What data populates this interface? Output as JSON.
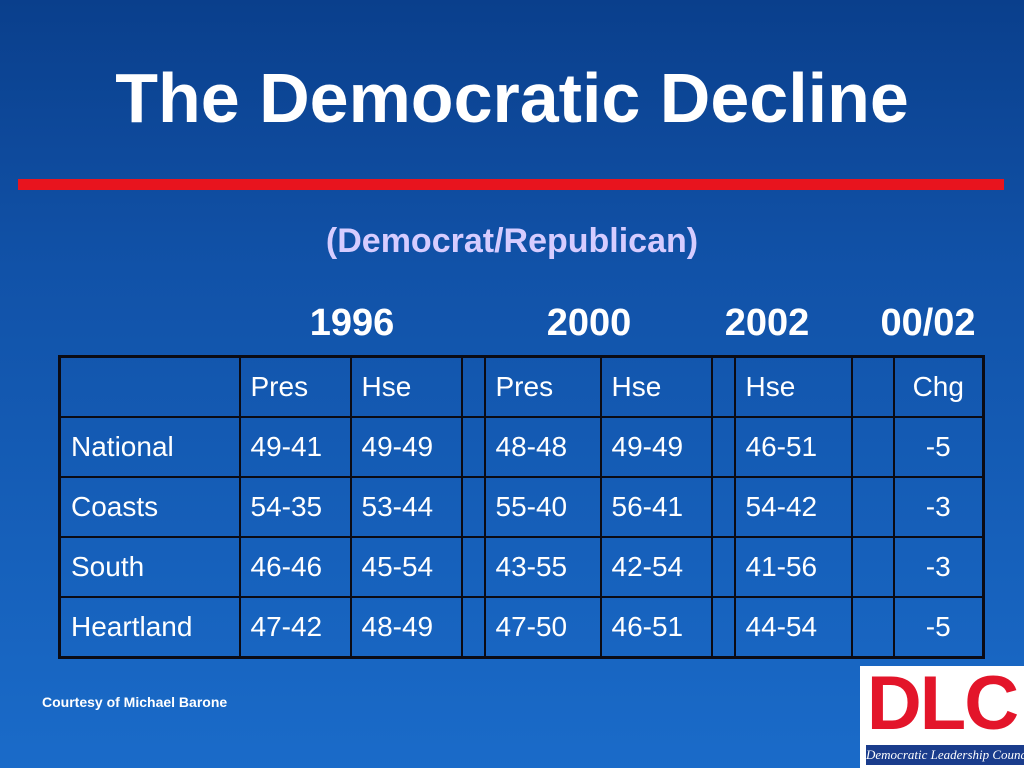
{
  "slide": {
    "title": "The Democratic Decline",
    "subtitle": "(Democrat/Republican)",
    "years": [
      "1996",
      "2000",
      "2002",
      "00/02"
    ],
    "courtesy": "Courtesy of Michael Barone"
  },
  "table": {
    "header": [
      "",
      "Pres",
      "Hse",
      "",
      "Pres",
      "Hse",
      "",
      "Hse",
      "",
      "Chg"
    ],
    "rows": [
      [
        "National",
        "49-41",
        "49-49",
        "",
        "48-48",
        "49-49",
        "",
        "46-51",
        "",
        "-5"
      ],
      [
        "Coasts",
        "54-35",
        "53-44",
        "",
        "55-40",
        "56-41",
        "",
        "54-42",
        "",
        "-3"
      ],
      [
        "South",
        "46-46",
        "45-54",
        "",
        "43-55",
        "42-54",
        "",
        "41-56",
        "",
        "-3"
      ],
      [
        "Heartland",
        "47-42",
        "48-49",
        "",
        "47-50",
        "46-51",
        "",
        "44-54",
        "",
        "-5"
      ]
    ]
  },
  "logo": {
    "letters": "DLC",
    "name": "Democratic Leadership Council"
  },
  "colors": {
    "background_top": "#0a3f8c",
    "background_bottom": "#1a6bc9",
    "rule": "#e8141e",
    "subtitle": "#d6ccff",
    "logo_red": "#e3152a",
    "logo_blue": "#1a3c8c"
  }
}
